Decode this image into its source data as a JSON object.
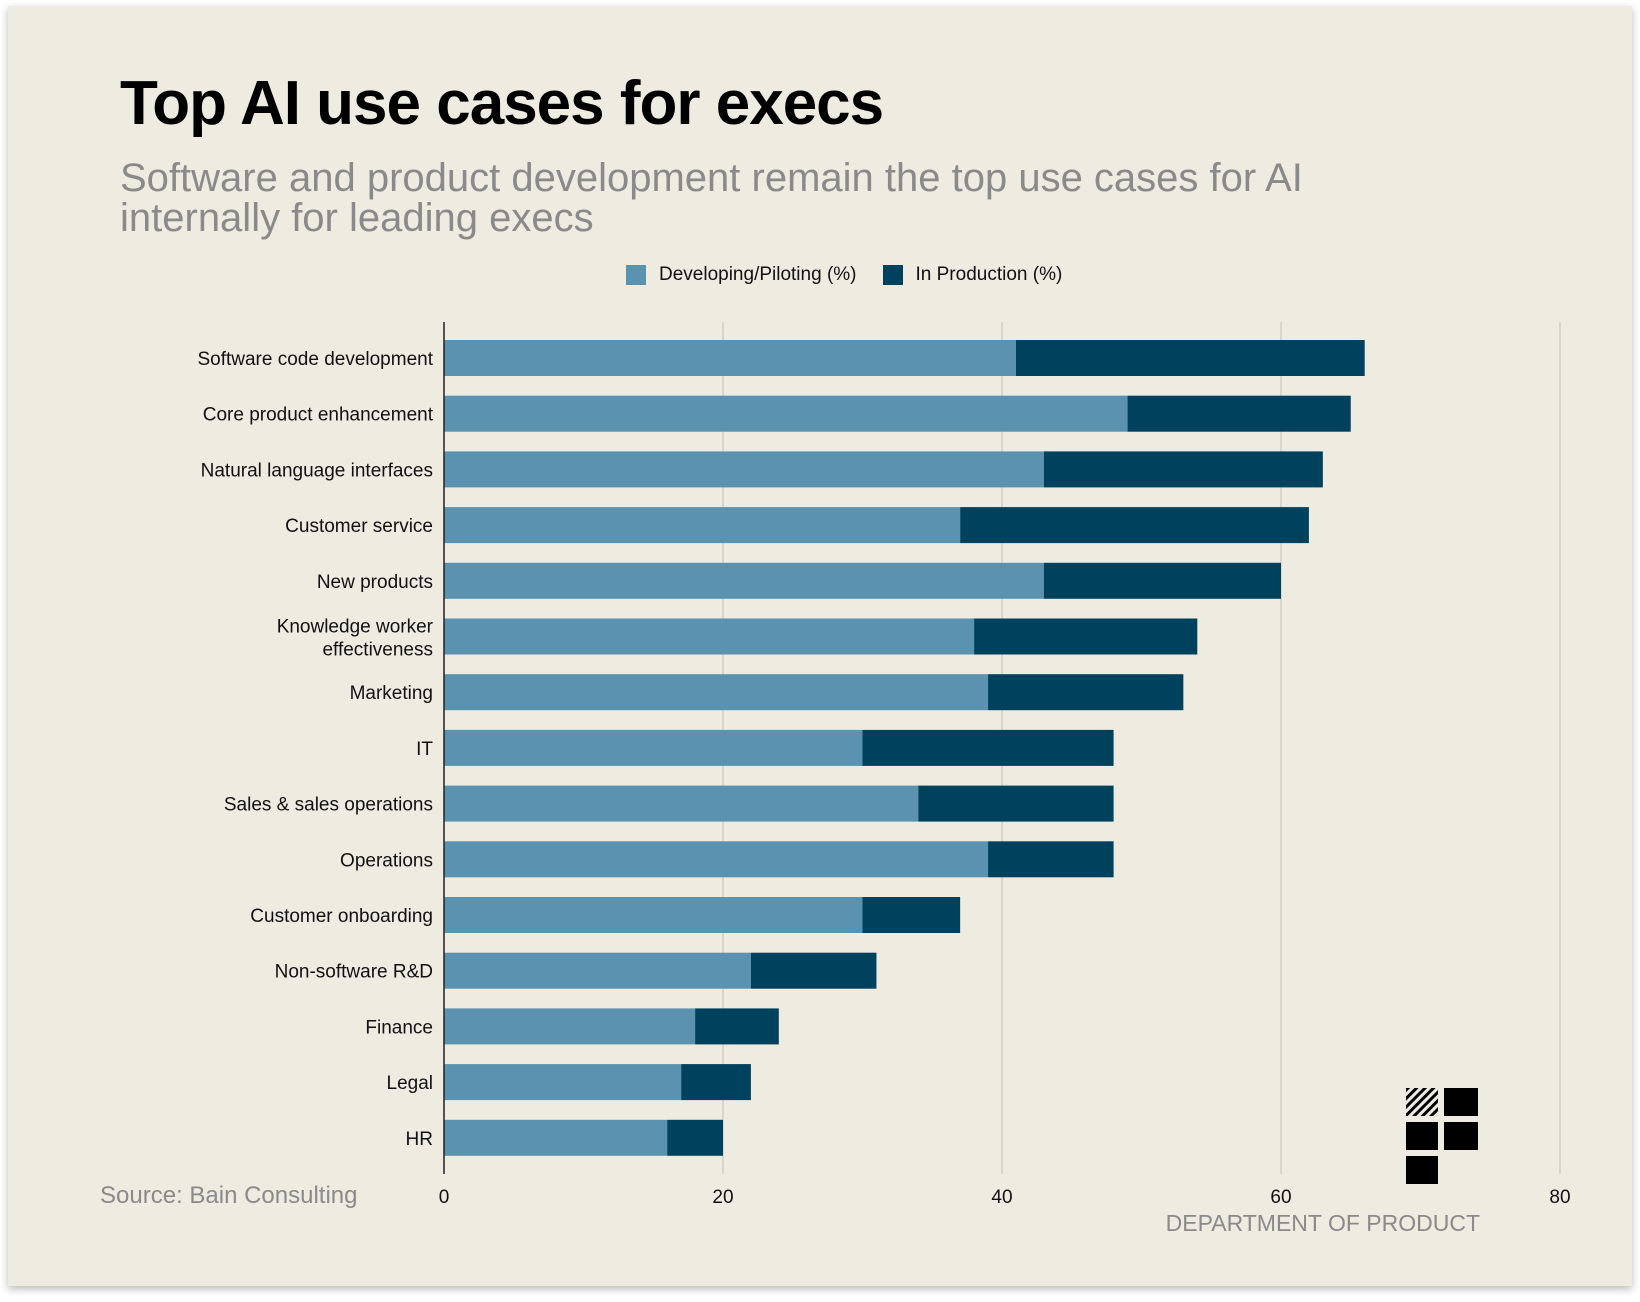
{
  "header": {
    "title": "Top AI use cases for execs",
    "subtitle": "Software and product development remain the top use cases for AI internally for leading execs"
  },
  "footer": {
    "source": "Source: Bain Consulting",
    "brand": "DEPARTMENT OF PRODUCT",
    "logo_icon": "department-of-product-logo-icon"
  },
  "colors": {
    "background": "#eeebe1",
    "developing": "#5b92b0",
    "production": "#00425e",
    "grid": "#d3d0c7"
  },
  "chart_data": {
    "type": "bar",
    "orientation": "horizontal",
    "stacked": true,
    "title": "Top AI use cases for execs",
    "subtitle": "Software and product development remain the top use cases for AI internally for leading execs",
    "categories": [
      [
        "Software code development"
      ],
      [
        "Core product enhancement"
      ],
      [
        "Natural language interfaces"
      ],
      [
        "Customer service"
      ],
      [
        "New products"
      ],
      [
        "Knowledge worker",
        "effectiveness"
      ],
      [
        "Marketing"
      ],
      [
        "IT"
      ],
      [
        "Sales & sales operations"
      ],
      [
        "Operations"
      ],
      [
        "Customer onboarding"
      ],
      [
        "Non-software R&D"
      ],
      [
        "Finance"
      ],
      [
        "Legal"
      ],
      [
        "HR"
      ]
    ],
    "series": [
      {
        "name": "Developing/Piloting (%)",
        "color": "#5b92b0",
        "values": [
          41,
          49,
          43,
          37,
          43,
          38,
          39,
          30,
          34,
          39,
          30,
          22,
          18,
          17,
          16
        ]
      },
      {
        "name": "In Production (%)",
        "color": "#00425e",
        "values": [
          25,
          16,
          20,
          25,
          17,
          16,
          14,
          18,
          14,
          9,
          7,
          9,
          6,
          5,
          4
        ]
      }
    ],
    "xlim": [
      0,
      80
    ],
    "xticks": [
      0,
      20,
      40,
      60,
      80
    ],
    "grid": "vertical",
    "legend": "top-center"
  }
}
